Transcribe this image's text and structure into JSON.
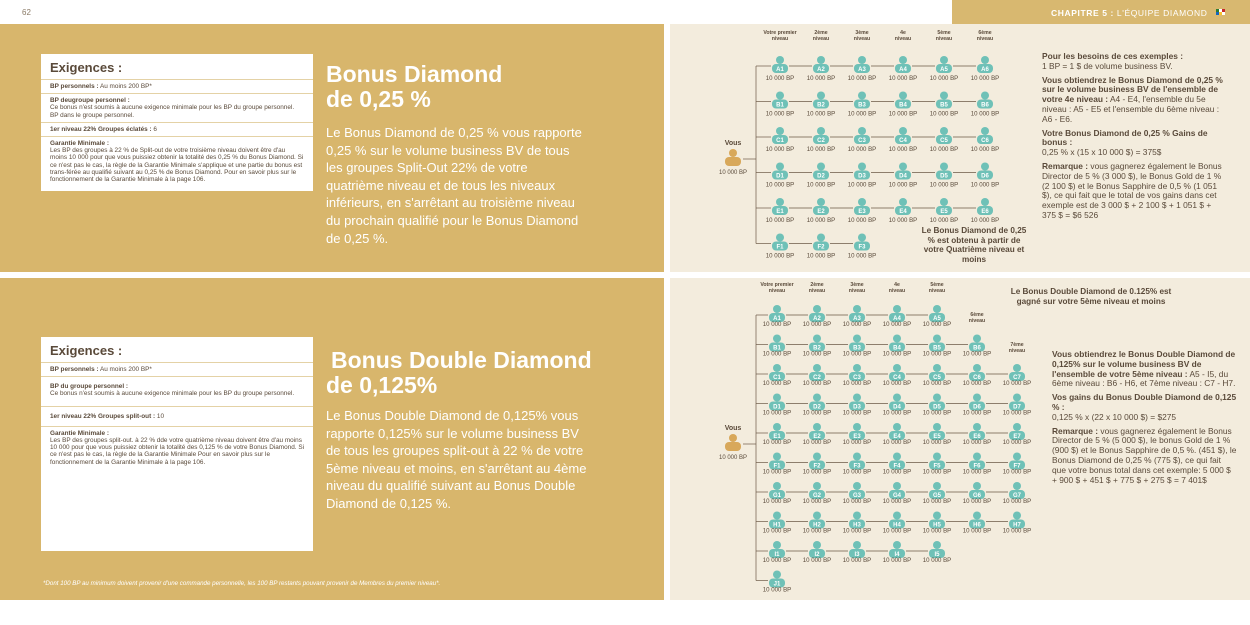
{
  "page_number": "62",
  "chapter": {
    "label": "CHAPITRE 5 :",
    "title": "L'ÉQUIPE DIAMOND"
  },
  "colors": {
    "gold": "#d8b66c",
    "cream": "#f3ecdd",
    "teal": "#6fc1b7",
    "you": "#d8a85a",
    "text": "#5a4a3a"
  },
  "top": {
    "req": {
      "title": "Exigences :",
      "r1": {
        "b": "BP personnels :",
        "t": " Au moins 200 BP*"
      },
      "r2": {
        "b": "BP deugroupe personnel :",
        "t": "Ce bonus n'est soumis à aucune exigence minimale pour les BP du groupe personnel.",
        "t2": "BP dans le groupe personnel."
      },
      "r3": {
        "b": "1er niveau 22% Groupes éclatés :",
        "t": " 6"
      },
      "r4": {
        "b": "Garantie Minimale :",
        "t": "Les BP des groupes à 22 % de Split-out de votre troisième niveau doivent être d'au moins 10 000 pour que vous puissiez obtenir la totalité des 0,25 % du Bonus Diamond. Si ce n'est pas le cas, la règle de la Garantie Minimale s'applique et une partie du bonus est trans-férée au qualifié suivant au 0,25 % de Bonus Diamond. Pour en savoir plus sur le fonctionnement de la Garantie Minimale à la page 106."
      }
    },
    "title1": "Bonus Diamond",
    "title2": "de 0,25 %",
    "text": "Le Bonus Diamond de 0,25 % vous rapporte 0,25 % sur le volume business BV de tous les groupes Split-Out 22% de votre quatrième niveau et de tous les niveaux inférieurs, en s'arrêtant au troisième niveau du prochain qualifié pour le Bonus Diamond de 0,25 %.",
    "levels": [
      "Votre premier niveau",
      "2ème niveau",
      "3ème niveau",
      "4e niveau",
      "5ème niveau",
      "6ème niveau"
    ],
    "rows": [
      [
        "A1",
        "A2",
        "A3",
        "A4",
        "A5",
        "A6"
      ],
      [
        "B1",
        "B2",
        "B3",
        "B4",
        "B5",
        "B6"
      ],
      [
        "C1",
        "C2",
        "C3",
        "C4",
        "C5",
        "C6"
      ],
      [
        "D1",
        "D2",
        "D3",
        "D4",
        "D5",
        "D6"
      ],
      [
        "E1",
        "E2",
        "E3",
        "E4",
        "E5",
        "E6"
      ],
      [
        "F1",
        "F2",
        "F3"
      ]
    ],
    "bp": "10 000 BP",
    "you_label": "Vous",
    "you_bp": "10 000 BP",
    "callout": "Le Bonus Diamond de 0,25 % est obtenu à partir de votre Quatrième niveau et moins",
    "side": {
      "p1b": "Pour les besoins de ces exemples :",
      "p1": "1 BP = 1 $ de volume business BV.",
      "p2b": "Vous obtiendrez le Bonus Diamond de 0,25 % sur le volume business BV de l'ensemble de votre 4e niveau :",
      "p2": " A4 - E4, l'ensemble du 5e niveau : A5 - E5 et l'ensemble du 6ème niveau : A6 - E6.",
      "p3b": "Votre Bonus Diamond de 0,25 % Gains de bonus :",
      "p3": "0,25 % x (15 x 10 000 $) = 375$",
      "p4b": "Remarque :",
      "p4": " vous gagnerez également le Bonus Director de 5 % (3 000 $), le Bonus Gold de 1 % (2 100 $) et le Bonus Sapphire de 0,5 % (1 051 $), ce qui fait que le total de vos gains dans cet exemple est de 3 000 $ + 2 100 $ + 1 051 $ + 375 $ = $6 526"
    }
  },
  "bottom": {
    "req": {
      "title": "Exigences :",
      "r1": {
        "b": "BP personnels :",
        "t": " Au moins 200 BP*"
      },
      "r2": {
        "b": "BP du groupe personnel :",
        "t": "Ce bonus n'est soumis à aucune exigence minimale pour les BP du groupe personnel."
      },
      "r3": {
        "b": "1er niveau 22% Groupes split-out :",
        "t": " 10"
      },
      "r4": {
        "b": "Garantie Minimale :",
        "t": "Les BP des groupes split-out. à 22 % dde votre quatrième niveau doivent être d'au moins 10 000 pour que vous puissiez obtenir la totalité des 0,125 % de votre Bonus Diamond. Si ce n'est pas le cas, la règle de la Garantie Minimale Pour en savoir plus sur le fonctionnement de la Garantie Minimale à la page 106."
      }
    },
    "title1": "Bonus Double Diamond",
    "title2": "de 0,125%",
    "text": "Le Bonus Double Diamond de 0,125% vous rapporte 0,125% sur le volume business BV de tous les groupes split-out à 22 % de votre 5ème niveau et moins, en s'arrêtant au 4ème niveau du qualifié suivant au Bonus Double Diamond de 0,125 %.",
    "levels": [
      "Votre premier niveau",
      "2ème niveau",
      "3ème niveau",
      "4e niveau",
      "5ème niveau",
      "6ème niveau",
      "7ème niveau"
    ],
    "rows": [
      [
        "A1",
        "A2",
        "A3",
        "A4",
        "A5"
      ],
      [
        "B1",
        "B2",
        "B3",
        "B4",
        "B5",
        "B6"
      ],
      [
        "C1",
        "C2",
        "C3",
        "C4",
        "C5",
        "C6",
        "C7"
      ],
      [
        "D1",
        "D2",
        "D3",
        "D4",
        "D5",
        "D6",
        "D7"
      ],
      [
        "E1",
        "E2",
        "E3",
        "E4",
        "E5",
        "E6",
        "E7"
      ],
      [
        "F1",
        "F2",
        "F3",
        "F4",
        "F5",
        "F6",
        "F7"
      ],
      [
        "G1",
        "G2",
        "G3",
        "G4",
        "G5",
        "G6",
        "G7"
      ],
      [
        "H1",
        "H2",
        "H3",
        "H4",
        "H5",
        "H6",
        "H7"
      ],
      [
        "I1",
        "I2",
        "I3",
        "I4",
        "I5"
      ],
      [
        "J1"
      ]
    ],
    "bp": "10 000 BP",
    "you_label": "Vous",
    "you_bp": "10 000 BP",
    "callout": "Le Bonus Double Diamond de 0.125% est gagné sur votre 5ème niveau et moins",
    "side": {
      "p1b": "Vous obtiendrez le Bonus Double Diamond de 0,125% sur le volume business BV de l'ensemble de votre 5ème niveau :",
      "p1": " A5 - I5, du 6ème niveau : B6 - H6, et 7ème niveau : C7 - H7.",
      "p2b": "Vos gains du Bonus Double Diamond de 0,125 % :",
      "p2": "0,125 % x (22 x 10 000 $) = $275",
      "p3b": "Remarque :",
      "p3": " vous gagnerez également le Bonus Director de 5 % (5 000 $), le bonus Gold de 1 % (900 $) et le Bonus Sapphire de 0,5 %. (451 $), le Bonus Diamond de 0,25 % (775 $), ce qui fait que votre bonus total dans cet exemple: 5 000 $ + 900 $ + 451 $ + 775 $ + 275 $ = 7 401$"
    }
  },
  "footnote": "*Dont 100 BP au minimum doivent provenir d'une commande personnelle, les 100 BP restants pouvant provenir de Membres du premier niveau*."
}
